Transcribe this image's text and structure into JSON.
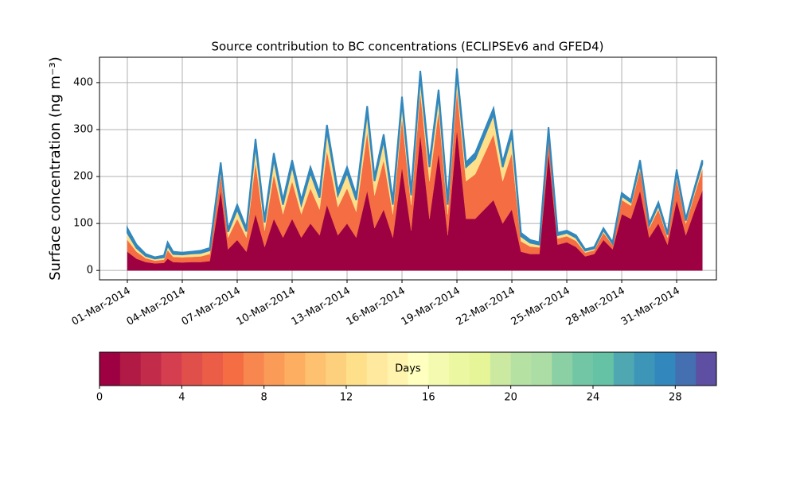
{
  "chart_data": {
    "type": "stacked_area",
    "title": "Source contribution to BC concentrations (ECLIPSEv6 and GFED4)",
    "ylabel": "Surface concentration (ng m⁻³)",
    "x": [
      0,
      0.5,
      1,
      1.5,
      2,
      2.2,
      2.5,
      3,
      3.5,
      4,
      4.5,
      5.1,
      5.5,
      6,
      6.5,
      7,
      7.5,
      8,
      8.5,
      9,
      9.5,
      10,
      10.5,
      10.9,
      11.5,
      12,
      12.5,
      13.1,
      13.5,
      14,
      14.5,
      15,
      15.5,
      16,
      16.5,
      17,
      17.5,
      18,
      18.5,
      19,
      20,
      20.5,
      21,
      21.5,
      22,
      22.5,
      23,
      23.5,
      24,
      24.5,
      25,
      25.5,
      26,
      26.5,
      27,
      27.5,
      28,
      28.5,
      29,
      29.5,
      30,
      30.5,
      31,
      31.4
    ],
    "series": [
      {
        "color": "#9e0142",
        "values": [
          40,
          25,
          18,
          15,
          16,
          25,
          18,
          17,
          18,
          18,
          20,
          170,
          45,
          65,
          40,
          120,
          50,
          110,
          70,
          110,
          70,
          100,
          75,
          140,
          75,
          100,
          70,
          170,
          90,
          130,
          70,
          220,
          85,
          290,
          110,
          250,
          75,
          300,
          110,
          110,
          150,
          100,
          130,
          40,
          35,
          35,
          250,
          55,
          60,
          50,
          30,
          35,
          65,
          45,
          120,
          110,
          170,
          70,
          100,
          55,
          150,
          75,
          130,
          170
        ]
      },
      {
        "color": "#f46d43",
        "values": [
          25,
          15,
          8,
          6,
          7,
          18,
          11,
          11,
          11,
          12,
          15,
          35,
          25,
          45,
          30,
          110,
          35,
          95,
          50,
          80,
          50,
          75,
          55,
          115,
          60,
          75,
          55,
          125,
          70,
          105,
          50,
          105,
          55,
          90,
          80,
          90,
          45,
          85,
          80,
          95,
          140,
          90,
          120,
          22,
          16,
          14,
          35,
          13,
          13,
          13,
          8,
          8,
          15,
          9,
          30,
          28,
          45,
          20,
          30,
          15,
          45,
          25,
          35,
          45
        ]
      },
      {
        "color": "#fee08b",
        "values": [
          15,
          8,
          5,
          4,
          5,
          10,
          6,
          6,
          7,
          7,
          8,
          15,
          12,
          20,
          13,
          38,
          17,
          33,
          20,
          33,
          20,
          33,
          25,
          43,
          25,
          33,
          25,
          43,
          30,
          43,
          20,
          33,
          20,
          33,
          30,
          33,
          20,
          33,
          30,
          33,
          43,
          30,
          38,
          11,
          8,
          6,
          10,
          7,
          7,
          7,
          4,
          4,
          6,
          3,
          9,
          7,
          12,
          6,
          9,
          6,
          12,
          6,
          10,
          12
        ]
      },
      {
        "color": "#3288bd",
        "values": [
          10,
          7,
          4,
          3,
          4,
          7,
          5,
          4,
          4,
          5,
          5,
          10,
          6,
          10,
          7,
          12,
          8,
          12,
          10,
          12,
          10,
          12,
          10,
          12,
          10,
          12,
          10,
          12,
          10,
          12,
          10,
          12,
          10,
          12,
          10,
          12,
          10,
          12,
          10,
          12,
          12,
          10,
          12,
          7,
          6,
          5,
          10,
          5,
          5,
          5,
          3,
          3,
          4,
          3,
          6,
          5,
          8,
          4,
          6,
          4,
          8,
          4,
          5,
          8
        ]
      }
    ],
    "xlim": [
      -1.52,
      32.17
    ],
    "xticks": [
      {
        "value": 0,
        "label": "01-Mar-2014"
      },
      {
        "value": 3,
        "label": "04-Mar-2014"
      },
      {
        "value": 6,
        "label": "07-Mar-2014"
      },
      {
        "value": 9,
        "label": "10-Mar-2014"
      },
      {
        "value": 12,
        "label": "13-Mar-2014"
      },
      {
        "value": 15,
        "label": "16-Mar-2014"
      },
      {
        "value": 18,
        "label": "19-Mar-2014"
      },
      {
        "value": 21,
        "label": "22-Mar-2014"
      },
      {
        "value": 24,
        "label": "25-Mar-2014"
      },
      {
        "value": 27,
        "label": "28-Mar-2014"
      },
      {
        "value": 30,
        "label": "31-Mar-2014"
      }
    ],
    "ylim": [
      -20,
      454
    ],
    "yticks": [
      0,
      100,
      200,
      300,
      400
    ],
    "grid": true,
    "colorbar": {
      "label": "Days",
      "lim": [
        0,
        30
      ],
      "ticks": [
        0,
        4,
        8,
        12,
        16,
        20,
        24,
        28
      ],
      "colors": [
        "#9e0142",
        "#b01a45",
        "#c22c4a",
        "#d53e4f",
        "#e04f4a",
        "#eb5d46",
        "#f46d43",
        "#f8874f",
        "#fa9b58",
        "#fdae61",
        "#fdc170",
        "#fdd07e",
        "#fee08b",
        "#fee99e",
        "#fff3ae",
        "#ffffbf",
        "#f4faaf",
        "#ecf7a1",
        "#e6f598",
        "#cbe9a0",
        "#b5e1a3",
        "#abdda4",
        "#8ad0a4",
        "#72c6a5",
        "#66c2a5",
        "#4ea7b1",
        "#3d95b8",
        "#3288bd",
        "#4470b1",
        "#5e4fa2"
      ]
    }
  }
}
